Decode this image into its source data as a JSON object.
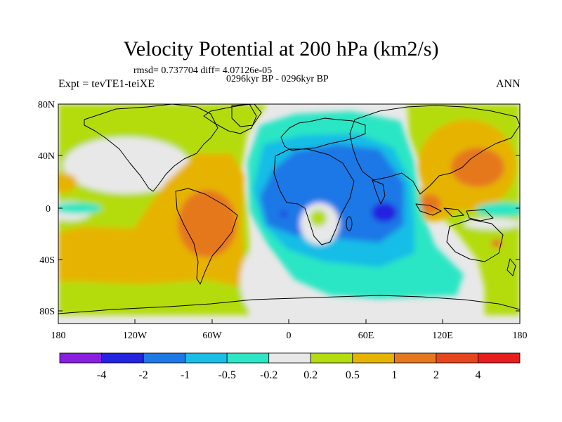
{
  "header": {
    "title": "Velocity Potential at 200 hPa (km2/s)",
    "stats": "rmsd= 0.737704 diff= 4.07126e-05",
    "period": "0296kyr BP - 0296kyr BP",
    "experiment": "Expt = tevTE1-teiXE",
    "season": "ANN"
  },
  "axes": {
    "y_ticks": [
      "80N",
      "40N",
      "0",
      "40S",
      "80S"
    ],
    "x_ticks": [
      "180",
      "120W",
      "60W",
      "0",
      "60E",
      "120E",
      "180"
    ]
  },
  "colorbar": {
    "colors": [
      "#8a1fe0",
      "#2323e0",
      "#1e78e6",
      "#19bde6",
      "#2ce6c4",
      "#e8e8e8",
      "#b4dc10",
      "#e6b400",
      "#e6781e",
      "#e6461e",
      "#e61e1e"
    ],
    "labels": [
      "-4",
      "-2",
      "-1",
      "-0.5",
      "-0.2",
      "0.2",
      "0.5",
      "1",
      "2",
      "4"
    ]
  }
}
